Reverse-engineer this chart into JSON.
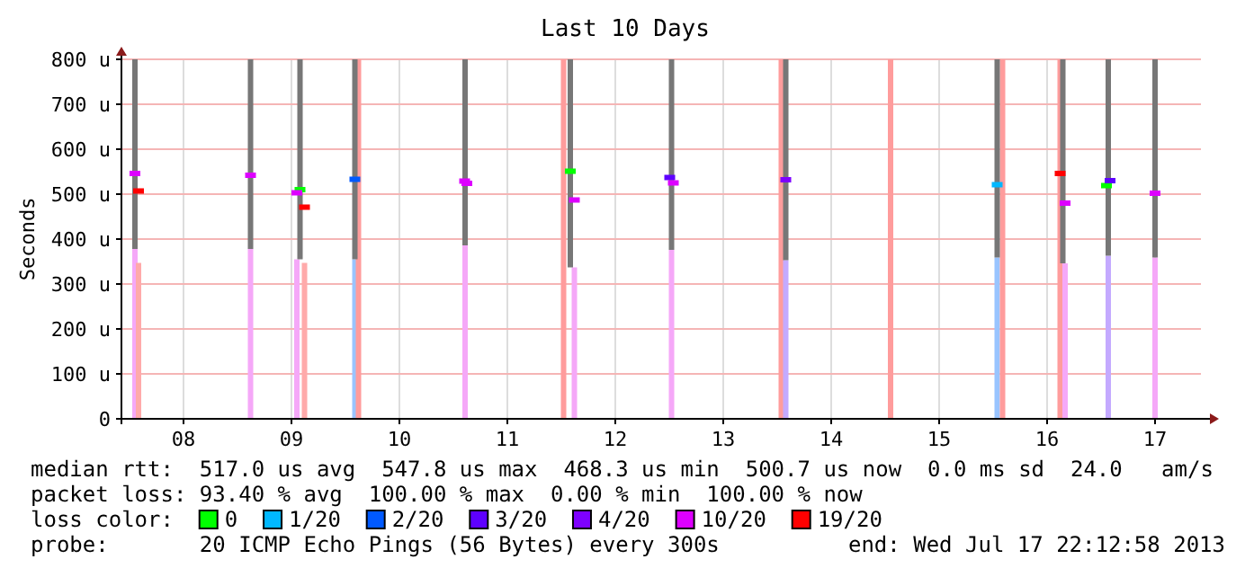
{
  "chart_data": {
    "type": "scatter",
    "title": "Last 10 Days",
    "ylabel": "Seconds",
    "legend_title": "loss color:",
    "legend": "bottom",
    "marker": "square",
    "grid": true,
    "xlim": [
      "2013-07-07T22:12",
      "2013-07-17T22:12"
    ],
    "xticks": [
      {
        "value": "2013-07-08T12:00",
        "label": "08"
      },
      {
        "value": "2013-07-09T12:00",
        "label": "09"
      },
      {
        "value": "2013-07-10T12:00",
        "label": "10"
      },
      {
        "value": "2013-07-11T12:00",
        "label": "11"
      },
      {
        "value": "2013-07-12T12:00",
        "label": "12"
      },
      {
        "value": "2013-07-13T12:00",
        "label": "13"
      },
      {
        "value": "2013-07-14T12:00",
        "label": "14"
      },
      {
        "value": "2013-07-15T12:00",
        "label": "15"
      },
      {
        "value": "2013-07-16T12:00",
        "label": "16"
      },
      {
        "value": "2013-07-17T12:00",
        "label": "17"
      }
    ],
    "ylim": [
      0,
      800
    ],
    "yticks": [
      0,
      {
        "value": 100,
        "label": "100 u"
      },
      {
        "value": 200,
        "label": "200 u"
      },
      {
        "value": 300,
        "label": "300 u"
      },
      {
        "value": 400,
        "label": "400 u"
      },
      {
        "value": 500,
        "label": "500 u"
      },
      {
        "value": 600,
        "label": "600 u"
      },
      {
        "value": 700,
        "label": "700 u"
      },
      {
        "value": 800,
        "label": "800 u"
      }
    ],
    "series": [
      {
        "type": "bar",
        "x": [
          "2013-07-08T01:12",
          "2013-07-08T02:00",
          "2013-07-09T02:54",
          "2013-07-09T13:12",
          "2013-07-09T14:54",
          "2013-07-10T02:06",
          "2013-07-10T02:54",
          "2013-07-11T02:36",
          "2013-07-12T00:30",
          "2013-07-12T02:54",
          "2013-07-13T00:30",
          "2013-07-14T00:54",
          "2013-07-14T01:54",
          "2013-07-15T01:12",
          "2013-07-16T00:54",
          "2013-07-16T02:06",
          "2013-07-16T14:54",
          "2013-07-16T16:00",
          "2013-07-17T01:36",
          "2013-07-17T12:00"
        ],
        "values": [
          378,
          347,
          378,
          355,
          347,
          355,
          800,
          386,
          800,
          337,
          376,
          800,
          353,
          800,
          359,
          800,
          800,
          346,
          363,
          359
        ],
        "colors": [
          "#f5a8f8",
          "#ffaaaa",
          "#f5a8f8",
          "#f5a8f8",
          "#ffaaaa",
          "#99c4ff",
          "#ff9c9c",
          "#f5a8f8",
          "#ff9c9c",
          "#f5a8f8",
          "#f5a8f8",
          "#ff9c9c",
          "#c4aaff",
          "#ff9c9c",
          "#99c4ff",
          "#ff9c9c",
          "#ff9c9c",
          "#f5a8f8",
          "#c4aaff",
          "#f5a8f8"
        ]
      },
      {
        "type": "bar",
        "color": "#777777",
        "x": [
          "2013-07-08T01:12",
          "2013-07-09T02:54",
          "2013-07-09T13:54",
          "2013-07-10T02:06",
          "2013-07-11T02:36",
          "2013-07-12T02:00",
          "2013-07-13T00:30",
          "2013-07-14T01:54",
          "2013-07-16T00:54",
          "2013-07-16T15:30",
          "2013-07-17T01:36",
          "2013-07-17T12:00"
        ],
        "base": [
          378,
          378,
          355,
          355,
          386,
          337,
          376,
          353,
          359,
          346,
          363,
          359
        ],
        "values": [
          422,
          422,
          445,
          445,
          414,
          463,
          424,
          447,
          441,
          454,
          437,
          441
        ]
      },
      {
        "name": "0",
        "color": "#00ff00",
        "x": [
          "2013-07-09T13:54",
          "2013-07-12T02:00",
          "2013-07-17T01:12"
        ],
        "values": [
          510,
          551,
          519
        ]
      },
      {
        "name": "1/20",
        "color": "#00b8ff",
        "x": [
          "2013-07-16T00:54"
        ],
        "values": [
          521
        ]
      },
      {
        "name": "2/20",
        "color": "#0059ff",
        "x": [
          "2013-07-10T02:06"
        ],
        "values": [
          533
        ]
      },
      {
        "name": "3/20",
        "color": "#5e00ff",
        "x": [
          "2013-07-13T00:06",
          "2013-07-17T02:00"
        ],
        "values": [
          537,
          530
        ]
      },
      {
        "name": "4/20",
        "color": "#7e00ff",
        "x": [
          "2013-07-14T01:54"
        ],
        "values": [
          532
        ]
      },
      {
        "name": "10/20",
        "color": "#dd00ff",
        "x": [
          "2013-07-08T01:12",
          "2013-07-09T02:54",
          "2013-07-09T13:12",
          "2013-07-11T02:30",
          "2013-07-11T03:00",
          "2013-07-12T02:54",
          "2013-07-13T00:54",
          "2013-07-16T16:00",
          "2013-07-17T12:00"
        ],
        "values": [
          546,
          542,
          503,
          529,
          524,
          487,
          525,
          480,
          502
        ]
      },
      {
        "name": "19/20",
        "color": "#ff0000",
        "x": [
          "2013-07-08T02:00",
          "2013-07-09T14:54",
          "2013-07-16T14:54"
        ],
        "values": [
          507,
          471,
          546
        ]
      }
    ],
    "annotations": [
      "median rtt:  517.0 us avg  547.8 us max  468.3 us min  500.7 us now  0.0 ms sd  24.0   am/s",
      "packet loss: 93.40 % avg  100.00 % max  0.00 % min  100.00 % now",
      "probe:       20 ICMP Echo Pings (56 Bytes) every 300s",
      "end: Wed Jul 17 22:12:58 2013"
    ]
  }
}
